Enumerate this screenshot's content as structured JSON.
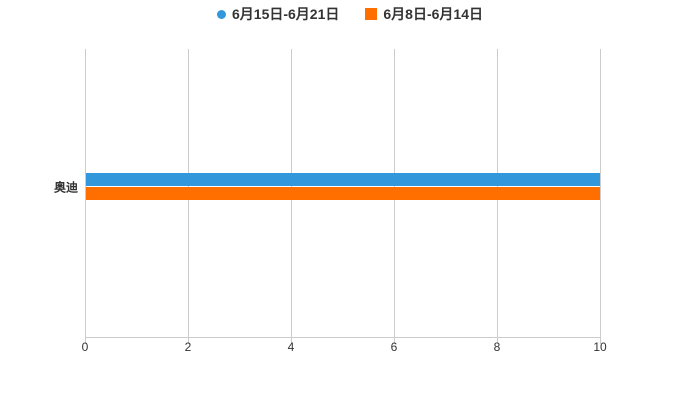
{
  "legend": {
    "items": [
      {
        "label": "6月15日-6月21日",
        "color": "#3398DB",
        "marker": "circle"
      },
      {
        "label": "6月8日-6月14日",
        "color": "#FF6F00",
        "marker": "square"
      }
    ]
  },
  "chart_data": {
    "type": "bar",
    "orientation": "horizontal",
    "title": "",
    "xlabel": "",
    "ylabel": "",
    "categories": [
      "奥迪"
    ],
    "series": [
      {
        "name": "6月15日-6月21日",
        "values": [
          10
        ],
        "color": "#3398DB"
      },
      {
        "name": "6月8日-6月14日",
        "values": [
          10
        ],
        "color": "#FF6F00"
      }
    ],
    "xlim": [
      0,
      10
    ],
    "x_ticks": [
      0,
      2,
      4,
      6,
      8,
      10
    ],
    "grid": true,
    "legend_position": "top-center",
    "colors": {
      "grid": "#cccccc",
      "axis": "#cccccc",
      "text": "#333333",
      "background": "#ffffff"
    }
  }
}
